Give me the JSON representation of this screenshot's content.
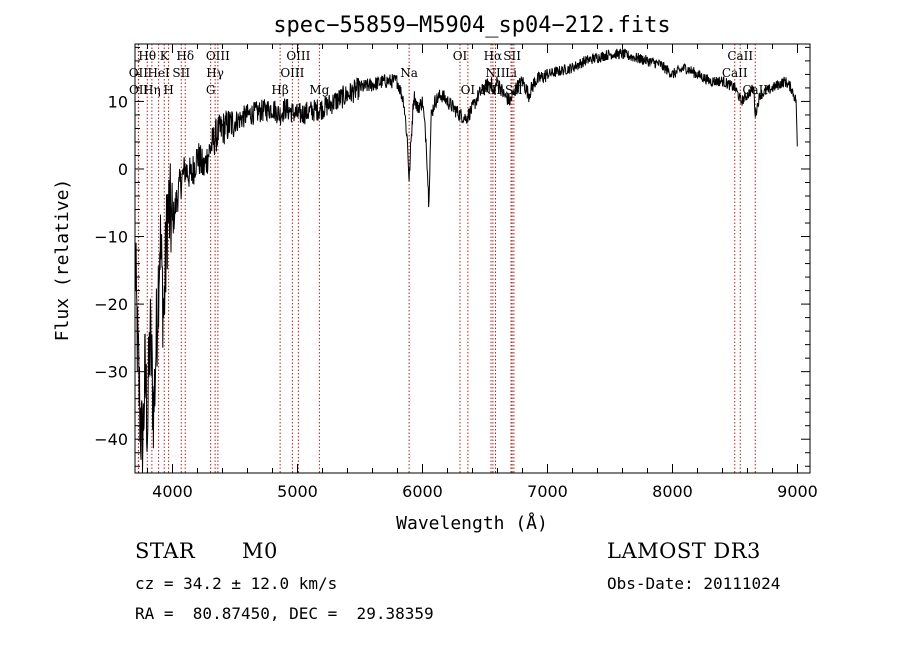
{
  "chart_data": {
    "type": "line",
    "title": "spec−55859−M5904_sp04−212.fits",
    "xlabel": "Wavelength (Å)",
    "ylabel": "Flux (relative)",
    "xlim": [
      3700,
      9100
    ],
    "ylim": [
      -45,
      18.5
    ],
    "xticks": [
      4000,
      5000,
      6000,
      7000,
      8000,
      9000
    ],
    "xtick_labels": [
      "4000",
      "5000",
      "6000",
      "7000",
      "8000",
      "9000"
    ],
    "yticks": [
      -40,
      -30,
      -20,
      -10,
      0,
      10
    ],
    "ytick_labels": [
      "−40",
      "−30",
      "−20",
      "−10",
      "0",
      "10"
    ],
    "spectrum_anchor_points": {
      "x": [
        3700,
        3720,
        3740,
        3760,
        3780,
        3800,
        3820,
        3850,
        3880,
        3900,
        3930,
        3960,
        4000,
        4050,
        4100,
        4150,
        4200,
        4250,
        4300,
        4350,
        4400,
        4500,
        4600,
        4700,
        4800,
        4860,
        4900,
        5000,
        5100,
        5200,
        5300,
        5400,
        5500,
        5600,
        5700,
        5800,
        5850,
        5880,
        5893,
        5905,
        5930,
        5960,
        6000,
        6030,
        6050,
        6070,
        6100,
        6150,
        6200,
        6250,
        6300,
        6350,
        6400,
        6450,
        6500,
        6550,
        6563,
        6600,
        6650,
        6700,
        6750,
        6800,
        6850,
        6900,
        7000,
        7100,
        7200,
        7300,
        7400,
        7500,
        7600,
        7700,
        7800,
        7900,
        8000,
        8100,
        8200,
        8300,
        8400,
        8500,
        8550,
        8600,
        8650,
        8662,
        8700,
        8800,
        8900,
        8950,
        8990,
        9000
      ],
      "y": [
        -13,
        -26,
        -36,
        -42,
        -30,
        -38,
        -24,
        -36,
        -20,
        -10,
        -22,
        -6,
        -8,
        -3,
        0,
        -1,
        2,
        0,
        3,
        5,
        6,
        7,
        8,
        8.5,
        9,
        8,
        9,
        8,
        8.5,
        9,
        10,
        11,
        12,
        12.5,
        13,
        13,
        10,
        4,
        -2,
        3,
        11,
        9,
        10,
        4,
        -5,
        8,
        10,
        11,
        10,
        9,
        8,
        7.5,
        9,
        11,
        12,
        13,
        11,
        13,
        11,
        10,
        12,
        13,
        11,
        13,
        14,
        14.5,
        15,
        16,
        16.5,
        17,
        17,
        16.5,
        16,
        15.5,
        14,
        15,
        14,
        13,
        13,
        12,
        10,
        11,
        12,
        8,
        11,
        12,
        13,
        12,
        10,
        1
      ]
    },
    "line_markers": [
      {
        "label": "Hθ",
        "x": 3798,
        "row": 1
      },
      {
        "label": "K",
        "x": 3934,
        "row": 1
      },
      {
        "label": "Hδ",
        "x": 4102,
        "row": 1
      },
      {
        "label": "OIII",
        "x": 4363,
        "row": 1
      },
      {
        "label": "OIII",
        "x": 5007,
        "row": 1
      },
      {
        "label": "OI",
        "x": 6300,
        "row": 1
      },
      {
        "label": "Hα",
        "x": 6563,
        "row": 1
      },
      {
        "label": "SII",
        "x": 6717,
        "row": 1
      },
      {
        "label": "CaII",
        "x": 8542,
        "row": 1
      },
      {
        "label": "OII",
        "x": 3727,
        "row": 2
      },
      {
        "label": "HeI",
        "x": 3889,
        "row": 2
      },
      {
        "label": "SII",
        "x": 4070,
        "row": 2
      },
      {
        "label": "Hγ",
        "x": 4341,
        "row": 2
      },
      {
        "label": "OIII",
        "x": 4959,
        "row": 2
      },
      {
        "label": "Na",
        "x": 5893,
        "row": 2
      },
      {
        "label": "NII",
        "x": 6584,
        "row": 2
      },
      {
        "label": "Li",
        "x": 6708,
        "row": 2
      },
      {
        "label": "CaII",
        "x": 8498,
        "row": 2
      },
      {
        "label": "OII",
        "x": 3729,
        "row": 3
      },
      {
        "label": "Hη",
        "x": 3835,
        "row": 3
      },
      {
        "label": "H",
        "x": 3969,
        "row": 3
      },
      {
        "label": "G",
        "x": 4305,
        "row": 3
      },
      {
        "label": "Hβ",
        "x": 4861,
        "row": 3
      },
      {
        "label": "Mg",
        "x": 5175,
        "row": 3
      },
      {
        "label": "OI",
        "x": 6363,
        "row": 3
      },
      {
        "label": "NII",
        "x": 6548,
        "row": 3
      },
      {
        "label": "SII",
        "x": 6731,
        "row": 3
      },
      {
        "label": "CaII",
        "x": 8662,
        "row": 3
      }
    ]
  },
  "info": {
    "class_label": "STAR",
    "subclass": "M0",
    "survey": "LAMOST DR3",
    "cz_line": "cz = 34.2 ± 12.0 km/s",
    "obs_date_line": "Obs-Date: 20111024",
    "coords_line": "RA =  80.87450, DEC =  29.38359"
  },
  "colors": {
    "axis": "#000000",
    "spectrum": "#000000",
    "marker_line": "#b22222"
  }
}
